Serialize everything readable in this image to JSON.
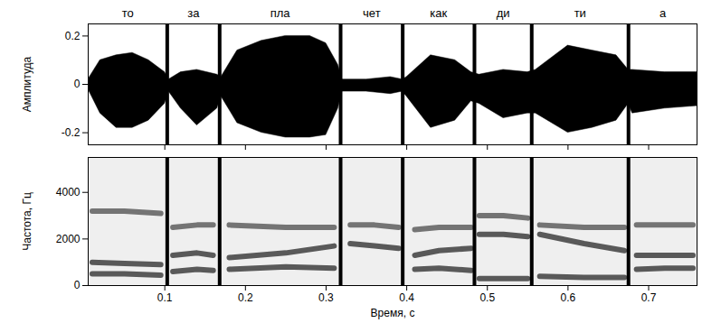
{
  "chart_data": [
    {
      "type": "area",
      "ylabel": "Амплитуда",
      "annotations": [
        "то",
        "за",
        "пла",
        "чет",
        "как",
        "ди",
        "ти",
        "а"
      ],
      "boundaries": [
        0.103,
        0.168,
        0.318,
        0.395,
        0.484,
        0.555,
        0.675
      ],
      "x": [
        0.005,
        0.02,
        0.04,
        0.06,
        0.08,
        0.1,
        0.105,
        0.12,
        0.14,
        0.165,
        0.17,
        0.19,
        0.22,
        0.25,
        0.28,
        0.3,
        0.315,
        0.32,
        0.35,
        0.38,
        0.395,
        0.4,
        0.43,
        0.46,
        0.48,
        0.49,
        0.52,
        0.55,
        0.56,
        0.6,
        0.63,
        0.66,
        0.675,
        0.68,
        0.72,
        0.76
      ],
      "series": [
        {
          "color": "#000000",
          "values": [
            0.02,
            0.1,
            0.12,
            0.13,
            0.1,
            0.05,
            0.02,
            0.05,
            0.06,
            0.04,
            0.03,
            0.14,
            0.18,
            0.2,
            0.2,
            0.17,
            0.08,
            0.02,
            0.02,
            0.03,
            0.02,
            0.03,
            0.12,
            0.1,
            0.05,
            0.04,
            0.06,
            0.05,
            0.06,
            0.16,
            0.14,
            0.12,
            0.06,
            0.06,
            0.05,
            0.05
          ]
        },
        {
          "color": "#000000",
          "values": [
            -0.02,
            -0.12,
            -0.18,
            -0.18,
            -0.15,
            -0.08,
            -0.03,
            -0.1,
            -0.17,
            -0.1,
            -0.05,
            -0.16,
            -0.2,
            -0.22,
            -0.22,
            -0.21,
            -0.1,
            -0.03,
            -0.03,
            -0.04,
            -0.03,
            -0.05,
            -0.18,
            -0.15,
            -0.07,
            -0.08,
            -0.14,
            -0.12,
            -0.12,
            -0.2,
            -0.18,
            -0.15,
            -0.08,
            -0.12,
            -0.1,
            -0.09
          ]
        }
      ],
      "xlim": [
        0.005,
        0.76
      ],
      "xticks": [
        0.1,
        0.2,
        0.3,
        0.4,
        0.5,
        0.6,
        0.7
      ],
      "ylim": [
        -0.25,
        0.25
      ],
      "yticks": [
        -0.2,
        0,
        0.2
      ],
      "tick_labels": "y",
      "grid": false
    },
    {
      "type": "line",
      "xlabel": "Время, с",
      "ylabel": "Частота, Гц",
      "boundaries": [
        0.103,
        0.168,
        0.318,
        0.395,
        0.484,
        0.555,
        0.675
      ],
      "x": [
        0.01,
        0.05,
        0.095,
        0.103,
        0.11,
        0.14,
        0.16,
        0.168,
        0.18,
        0.25,
        0.31,
        0.318,
        0.33,
        0.36,
        0.39,
        0.395,
        0.41,
        0.44,
        0.48,
        0.484,
        0.49,
        0.52,
        0.55,
        0.555,
        0.565,
        0.62,
        0.67,
        0.675,
        0.685,
        0.72,
        0.755
      ],
      "series": [
        {
          "color": "#333333",
          "values": [
            500,
            500,
            450,
            null,
            600,
            700,
            650,
            null,
            700,
            800,
            750,
            null,
            null,
            null,
            null,
            null,
            700,
            750,
            650,
            null,
            300,
            300,
            300,
            null,
            400,
            350,
            350,
            null,
            700,
            750,
            750
          ]
        },
        {
          "color": "#333333",
          "values": [
            1000,
            950,
            900,
            null,
            1300,
            1400,
            1300,
            null,
            1200,
            1400,
            1700,
            null,
            1800,
            1700,
            1600,
            null,
            1300,
            1500,
            1600,
            null,
            2200,
            2200,
            2100,
            null,
            2200,
            1800,
            1500,
            null,
            1300,
            1300,
            1300
          ]
        },
        {
          "color": "#555555",
          "values": [
            3200,
            3200,
            3100,
            null,
            2500,
            2600,
            2600,
            null,
            2600,
            2500,
            2500,
            null,
            2600,
            2600,
            2500,
            null,
            2400,
            2500,
            2500,
            null,
            3000,
            3000,
            2900,
            null,
            2600,
            2500,
            2500,
            null,
            2600,
            2600,
            2600
          ]
        }
      ],
      "xlim": [
        0.005,
        0.76
      ],
      "xticks": [
        0.1,
        0.2,
        0.3,
        0.4,
        0.5,
        0.6,
        0.7
      ],
      "ylim": [
        0,
        5500
      ],
      "yticks": [
        0,
        2000,
        4000
      ],
      "grid": false
    }
  ]
}
